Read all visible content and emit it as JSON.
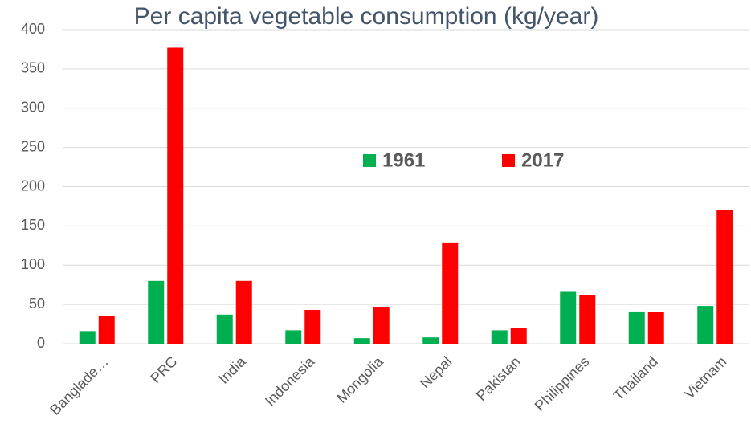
{
  "chart_data": {
    "type": "bar",
    "title": "Per capita vegetable consumption (kg/year)",
    "categories": [
      "Banglade…",
      "PRC",
      "India",
      "Indonesia",
      "Mongolia",
      "Nepal",
      "Pakistan",
      "Philippines",
      "Thailand",
      "Vietnam"
    ],
    "series": [
      {
        "name": "1961",
        "color": "#00b050",
        "values": [
          16,
          80,
          37,
          17,
          7,
          8,
          17,
          66,
          41,
          48
        ]
      },
      {
        "name": "2017",
        "color": "#ff0000",
        "values": [
          35,
          377,
          80,
          43,
          47,
          128,
          20,
          62,
          40,
          170
        ]
      }
    ],
    "ylim": [
      0,
      400
    ],
    "yticks": [
      0,
      50,
      100,
      150,
      200,
      250,
      300,
      350,
      400
    ],
    "grid": true
  }
}
